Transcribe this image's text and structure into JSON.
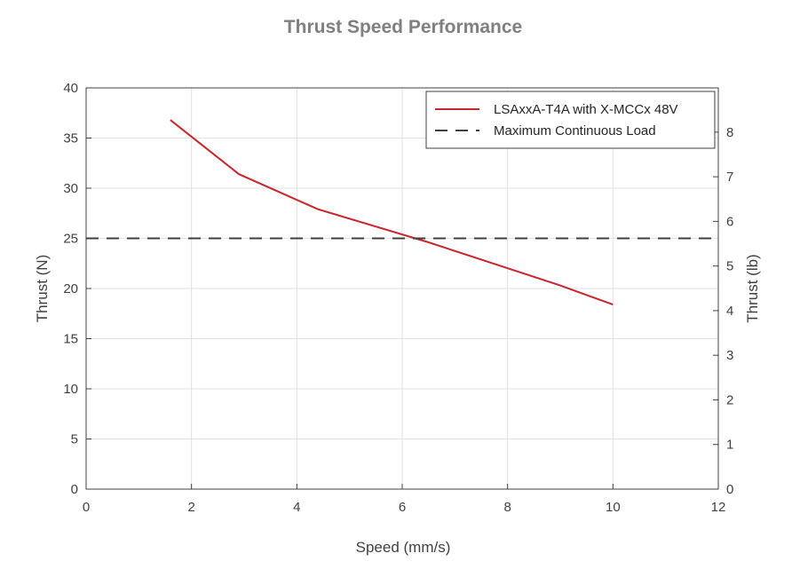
{
  "chart_data": {
    "type": "line",
    "title": "Thrust Speed Performance",
    "xlabel": "Speed (mm/s)",
    "ylabel": "Thrust (N)",
    "y2label": "Thrust (lb)",
    "xlim": [
      0,
      12
    ],
    "ylim": [
      0,
      40
    ],
    "y2lim": [
      0,
      8.992
    ],
    "x_ticks": [
      "0",
      "2",
      "4",
      "6",
      "8",
      "10",
      "12"
    ],
    "y_ticks": [
      "0",
      "5",
      "10",
      "15",
      "20",
      "25",
      "30",
      "35",
      "40"
    ],
    "y2_ticks": [
      "0",
      "1",
      "2",
      "3",
      "4",
      "5",
      "6",
      "7",
      "8"
    ],
    "grid": true,
    "legend_position": "top-right",
    "series": [
      {
        "name": "LSAxxA-T4A with X-MCCx 48V",
        "style": "solid",
        "color": "#c8262c",
        "x": [
          1.6,
          2.9,
          4.4,
          6.5,
          9.0,
          10.0
        ],
        "y": [
          36.8,
          31.4,
          27.9,
          24.6,
          20.3,
          18.4
        ]
      },
      {
        "name": "Maximum Continuous Load",
        "style": "dashed",
        "color": "#404040",
        "x": [
          0,
          12
        ],
        "y": [
          25,
          25
        ]
      }
    ]
  }
}
